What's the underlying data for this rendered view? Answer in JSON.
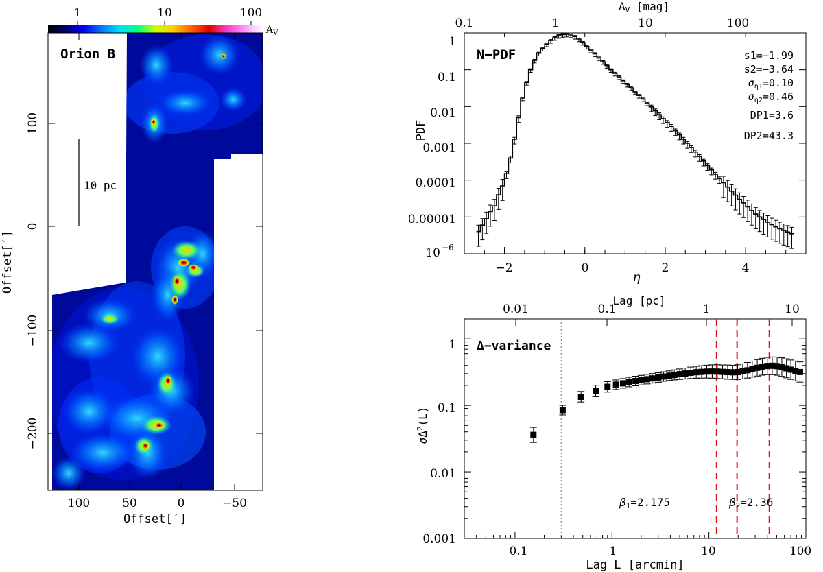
{
  "chart_data": [
    {
      "type": "heatmap",
      "region_label": "Orion B",
      "xlabel": "Offset[′]",
      "ylabel": "Offset[′]",
      "x_ticks": [
        "100",
        "50",
        "0",
        "−50"
      ],
      "y_ticks": [
        "100",
        "0",
        "−100",
        "−200"
      ],
      "scale_bar_label": "10 pc",
      "colorbar": {
        "label": "A",
        "label_sub": "V",
        "ticks": [
          "1",
          "10",
          "100"
        ],
        "colors": [
          "#000000",
          "#00006e",
          "#0000ff",
          "#0078ff",
          "#00e0ff",
          "#00ff80",
          "#c8ff00",
          "#ffd000",
          "#ff6000",
          "#e00000",
          "#ff3cc8",
          "#ff99ff",
          "#ffffff"
        ]
      }
    },
    {
      "type": "line",
      "panel_label": "N−PDF",
      "xlabel": "η",
      "ylabel": "PDF",
      "xlim": [
        -3.0,
        5.5
      ],
      "ylim": [
        1e-06,
        1
      ],
      "x_ticks": [
        "−2",
        "0",
        "2",
        "4"
      ],
      "y_ticks": [
        "1",
        "0.1",
        "0.01",
        "0.001",
        "0.0001",
        "0.00001",
        "10"
      ],
      "y_tick_last_exp": "−6",
      "top_axis_label": "A",
      "top_axis_label_sub": "V",
      "top_axis_unit": " [mag]",
      "top_ticks": [
        "0.1",
        "1",
        "10",
        "100"
      ],
      "params": [
        "s1=−1.99",
        "s2=−3.64",
        "0.10",
        "0.46",
        "DP1=3.6",
        "DP2=43.3"
      ],
      "sigma_labels": [
        {
          "sub": "η1",
          "val": "=0.10"
        },
        {
          "sub": "η2",
          "val": "=0.46"
        }
      ],
      "eta": [
        -2.65,
        -2.55,
        -2.45,
        -2.35,
        -2.25,
        -2.15,
        -2.05,
        -1.95,
        -1.85,
        -1.75,
        -1.65,
        -1.55,
        -1.45,
        -1.35,
        -1.25,
        -1.15,
        -1.05,
        -0.95,
        -0.85,
        -0.75,
        -0.65,
        -0.55,
        -0.45,
        -0.35,
        -0.25,
        -0.15,
        -0.05,
        0.05,
        0.15,
        0.25,
        0.35,
        0.45,
        0.55,
        0.65,
        0.75,
        0.85,
        0.95,
        1.05,
        1.15,
        1.25,
        1.35,
        1.45,
        1.55,
        1.65,
        1.75,
        1.85,
        1.95,
        2.05,
        2.15,
        2.25,
        2.35,
        2.45,
        2.55,
        2.65,
        2.75,
        2.85,
        2.95,
        3.05,
        3.15,
        3.25,
        3.35,
        3.45,
        3.55,
        3.65,
        3.75,
        3.85,
        3.95,
        4.05,
        4.15,
        4.25,
        4.35,
        4.45,
        4.55,
        4.65,
        4.75,
        4.85,
        4.95,
        5.05,
        5.15
      ],
      "pdf": [
        4e-06,
        6e-06,
        9e-06,
        1.4e-05,
        2e-05,
        4e-05,
        7e-05,
        0.00015,
        0.0004,
        0.0013,
        0.005,
        0.017,
        0.045,
        0.1,
        0.18,
        0.28,
        0.38,
        0.5,
        0.62,
        0.74,
        0.84,
        0.9,
        0.92,
        0.88,
        0.8,
        0.68,
        0.55,
        0.43,
        0.34,
        0.27,
        0.21,
        0.165,
        0.13,
        0.1,
        0.08,
        0.064,
        0.05,
        0.04,
        0.032,
        0.025,
        0.02,
        0.016,
        0.0125,
        0.0098,
        0.0077,
        0.006,
        0.0047,
        0.0037,
        0.0029,
        0.0022,
        0.0017,
        0.0013,
        0.001,
        0.00077,
        0.00058,
        0.00044,
        0.00033,
        0.00025,
        0.00019,
        0.000145,
        0.00011,
        8.5e-05,
        6.5e-05,
        5e-05,
        3.9e-05,
        3e-05,
        2.4e-05,
        1.9e-05,
        1.5e-05,
        1.2e-05,
        1e-05,
        8.5e-06,
        7.2e-06,
        6.2e-06,
        5.4e-06,
        4.8e-06,
        4.3e-06,
        3.9e-06,
        3.5e-06
      ]
    },
    {
      "type": "scatter",
      "panel_label": "Δ−variance",
      "xlabel": "Lag L [arcmin]",
      "ylabel_prefix": "σ",
      "ylabel_mid": "Δ",
      "ylabel_exp": "2",
      "ylabel_suffix": "(L)",
      "top_axis_label": "Lag [pc]",
      "top_ticks": [
        "0.01",
        "0.1",
        "1",
        "10"
      ],
      "xlim": [
        0.03,
        100
      ],
      "ylim": [
        0.001,
        2
      ],
      "x_ticks": [
        "0.1",
        "1",
        "10",
        "100"
      ],
      "y_ticks": [
        "1",
        "0.1",
        "0.01",
        "0.001"
      ],
      "beta1": {
        "sym": "β",
        "sub": "1",
        "val": "=2.175"
      },
      "beta2": {
        "sym": "β",
        "sub": "2",
        "val": "=2.36"
      },
      "dotted_line_x": 0.3,
      "red_dashed_x": [
        12,
        19.5,
        42
      ],
      "points": [
        {
          "x": 0.155,
          "y": 0.036,
          "err": 0.3
        },
        {
          "x": 0.31,
          "y": 0.085,
          "err": 0.18
        },
        {
          "x": 0.48,
          "y": 0.135,
          "err": 0.2
        },
        {
          "x": 0.68,
          "y": 0.165,
          "err": 0.22
        },
        {
          "x": 0.9,
          "y": 0.19,
          "err": 0.2
        },
        {
          "x": 1.1,
          "y": 0.205,
          "err": 0.18
        },
        {
          "x": 1.3,
          "y": 0.215,
          "err": 0.18
        },
        {
          "x": 1.5,
          "y": 0.225,
          "err": 0.18
        },
        {
          "x": 1.75,
          "y": 0.233,
          "err": 0.18
        },
        {
          "x": 2.0,
          "y": 0.24,
          "err": 0.18
        },
        {
          "x": 2.3,
          "y": 0.248,
          "err": 0.18
        },
        {
          "x": 2.6,
          "y": 0.255,
          "err": 0.18
        },
        {
          "x": 3.0,
          "y": 0.263,
          "err": 0.18
        },
        {
          "x": 3.4,
          "y": 0.272,
          "err": 0.18
        },
        {
          "x": 3.9,
          "y": 0.28,
          "err": 0.18
        },
        {
          "x": 4.4,
          "y": 0.288,
          "err": 0.19
        },
        {
          "x": 5.0,
          "y": 0.295,
          "err": 0.2
        },
        {
          "x": 5.7,
          "y": 0.302,
          "err": 0.21
        },
        {
          "x": 6.5,
          "y": 0.31,
          "err": 0.22
        },
        {
          "x": 7.4,
          "y": 0.316,
          "err": 0.23
        },
        {
          "x": 8.4,
          "y": 0.32,
          "err": 0.24
        },
        {
          "x": 9.5,
          "y": 0.323,
          "err": 0.25
        },
        {
          "x": 10.8,
          "y": 0.324,
          "err": 0.26
        },
        {
          "x": 12.2,
          "y": 0.323,
          "err": 0.27
        },
        {
          "x": 13.8,
          "y": 0.32,
          "err": 0.27
        },
        {
          "x": 15.6,
          "y": 0.317,
          "err": 0.28
        },
        {
          "x": 17.6,
          "y": 0.315,
          "err": 0.28
        },
        {
          "x": 19.8,
          "y": 0.317,
          "err": 0.29
        },
        {
          "x": 22.3,
          "y": 0.325,
          "err": 0.3
        },
        {
          "x": 25.0,
          "y": 0.338,
          "err": 0.31
        },
        {
          "x": 28.0,
          "y": 0.352,
          "err": 0.32
        },
        {
          "x": 31.5,
          "y": 0.368,
          "err": 0.33
        },
        {
          "x": 35.5,
          "y": 0.382,
          "err": 0.34
        },
        {
          "x": 40.0,
          "y": 0.392,
          "err": 0.35
        },
        {
          "x": 45.0,
          "y": 0.395,
          "err": 0.36
        },
        {
          "x": 50.5,
          "y": 0.39,
          "err": 0.37
        },
        {
          "x": 56.5,
          "y": 0.378,
          "err": 0.38
        },
        {
          "x": 63.0,
          "y": 0.362,
          "err": 0.39
        },
        {
          "x": 70.0,
          "y": 0.345,
          "err": 0.4
        },
        {
          "x": 78.0,
          "y": 0.33,
          "err": 0.41
        },
        {
          "x": 87.0,
          "y": 0.318,
          "err": 0.42
        }
      ]
    }
  ]
}
